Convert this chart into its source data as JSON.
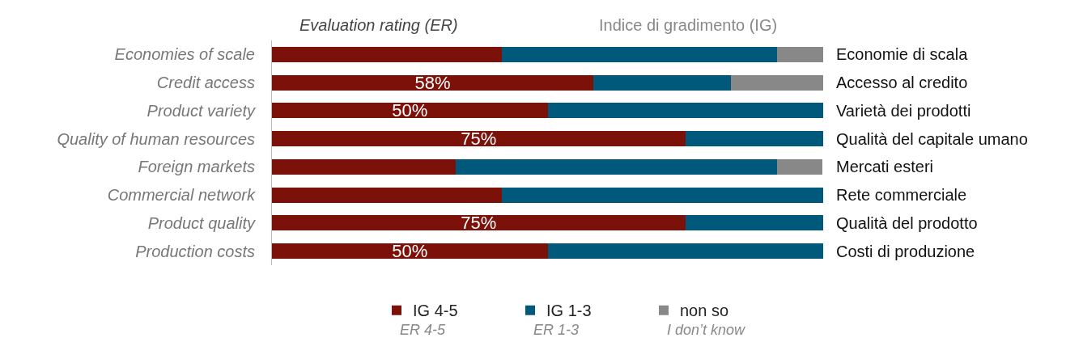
{
  "chart_data": {
    "type": "bar",
    "orientation": "horizontal",
    "stacked": true,
    "categories": [
      "Economies of scale",
      "Credit access",
      "Product variety",
      "Quality of human resources",
      "Foreign markets",
      "Commercial network",
      "Product quality",
      "Production costs"
    ],
    "y2_categories": [
      "Economie di scala",
      "Accesso al credito",
      "Varietà dei prodotti",
      "Qualità del capitale umano",
      "Mercati esteri",
      "Rete commerciale",
      "Qualità del prodotto",
      "Costi di produzione"
    ],
    "xlim": [
      0,
      100
    ],
    "tick_labels": "y",
    "legend": "bottom",
    "series": [
      {
        "name": "IG 4-5",
        "color": "#7b1109",
        "values": [
          41.7,
          58.3,
          50,
          75,
          33.3,
          41.7,
          75,
          50
        ],
        "value_labels": [
          null,
          "58%",
          "50%",
          "75%",
          null,
          null,
          "75%",
          "50%"
        ]
      },
      {
        "name": "IG 1-3",
        "color": "#00587a",
        "values": [
          50,
          25,
          50,
          25,
          58.3,
          58.3,
          25,
          50
        ]
      },
      {
        "name": "non so",
        "color": "#888888",
        "values": [
          8.3,
          16.7,
          0,
          0,
          8.3,
          0,
          0,
          0
        ]
      }
    ],
    "annotations": [
      "Evaluation rating (ER)",
      "Indice di gradimento (IG)",
      "ER 4-5",
      "ER 1-3",
      "I don’t know"
    ]
  }
}
